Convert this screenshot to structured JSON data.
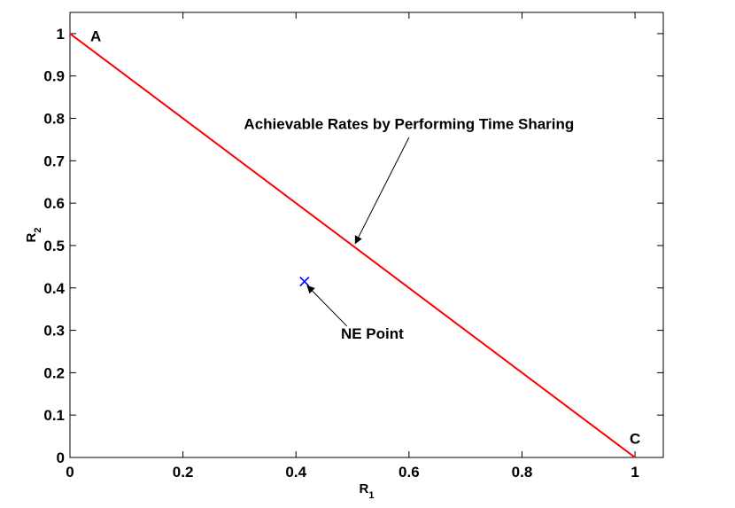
{
  "chart_data": {
    "type": "line",
    "title": "",
    "xlabel": "R",
    "xlabel_sub": "1",
    "ylabel": "R",
    "ylabel_sub": "2",
    "xlim": [
      0,
      1.05
    ],
    "ylim": [
      0,
      1.05
    ],
    "x_ticks": [
      0,
      0.2,
      0.4,
      0.6,
      0.8,
      1
    ],
    "x_tick_labels": [
      "0",
      "0.2",
      "0.4",
      "0.6",
      "0.8",
      "1"
    ],
    "y_ticks": [
      0,
      0.1,
      0.2,
      0.3,
      0.4,
      0.5,
      0.6,
      0.7,
      0.8,
      0.9,
      1
    ],
    "y_tick_labels": [
      "0",
      "0.1",
      "0.2",
      "0.3",
      "0.4",
      "0.5",
      "0.6",
      "0.7",
      "0.8",
      "0.9",
      "1"
    ],
    "grid": false,
    "series": [
      {
        "kind": "line",
        "color": "#ff0000",
        "x": [
          0,
          1
        ],
        "y": [
          1,
          0
        ]
      },
      {
        "kind": "marker",
        "marker": "x",
        "color": "#0000ff",
        "x": [
          0.415
        ],
        "y": [
          0.415
        ]
      }
    ],
    "point_labels": [
      {
        "text": "A",
        "x": 0.03,
        "y": 0.995
      },
      {
        "text": "C",
        "x": 1.0,
        "y": 0.045
      }
    ],
    "annotations": [
      {
        "text": "Achievable Rates by Performing Time Sharing",
        "text_x": 0.6,
        "text_y": 0.775,
        "arrow_from": [
          0.6,
          0.755
        ],
        "arrow_to": [
          0.505,
          0.505
        ]
      },
      {
        "text": "NE Point",
        "text_x": 0.535,
        "text_y": 0.28,
        "arrow_from": [
          0.49,
          0.31
        ],
        "arrow_to": [
          0.42,
          0.405
        ]
      }
    ]
  }
}
